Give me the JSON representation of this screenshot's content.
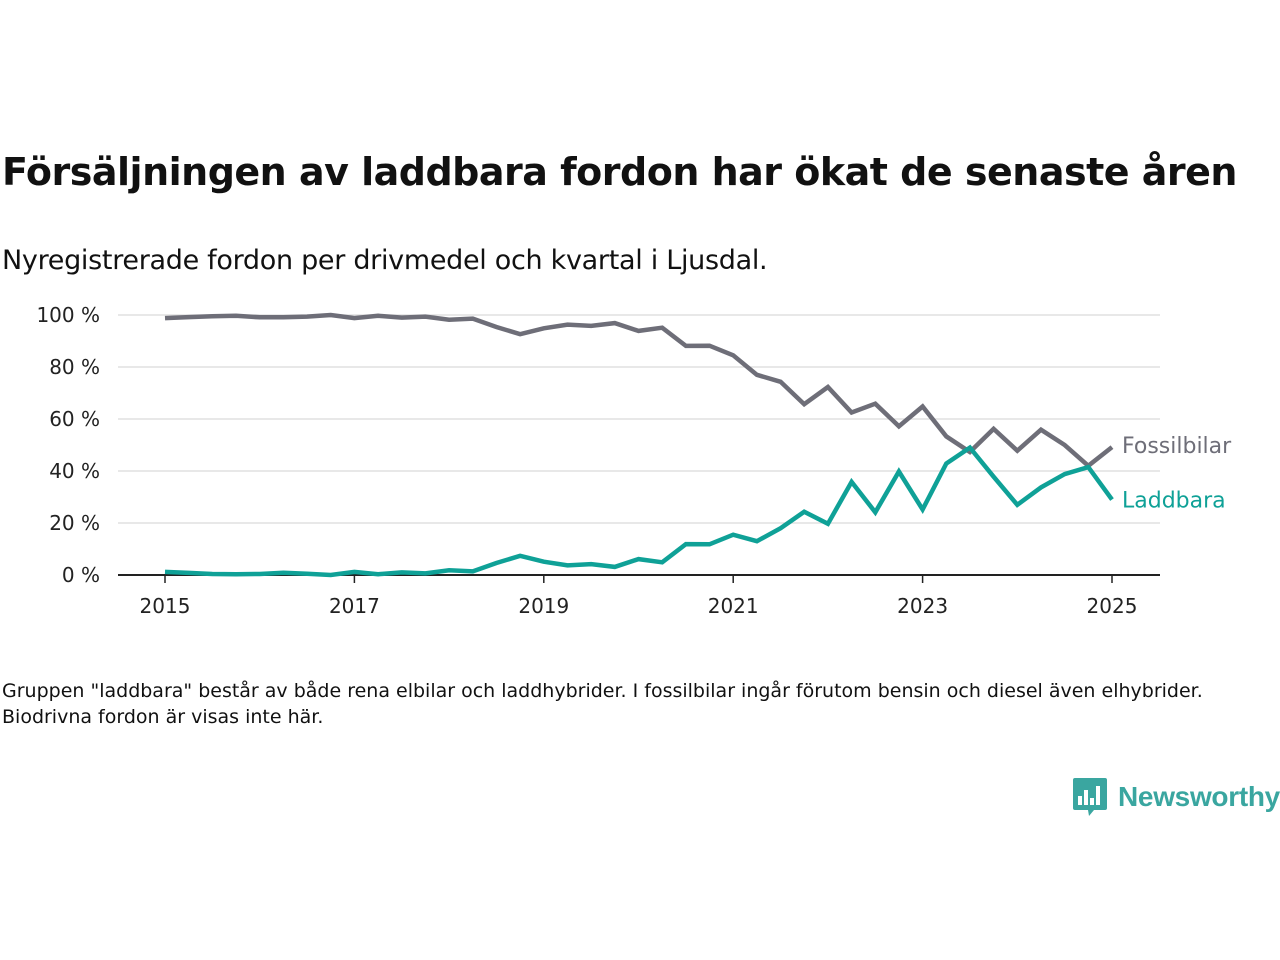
{
  "title": "Försäljningen av laddbara fordon har ökat de senaste åren",
  "subtitle": "Nyregistrerade fordon per drivmedel och kvartal i Ljusdal.",
  "note": "Gruppen \"laddbara\" består av både rena elbilar och laddhybrider. I fossilbilar ingår förutom bensin och diesel även elhybrider. Biodrivna fordon är visas inte här.",
  "brand": {
    "name": "Newsworthy",
    "icon": "newsworthy-logo-icon",
    "color": "#3aa6a0"
  },
  "chart_data": {
    "type": "line",
    "x_tick_labels": [
      "2015",
      "2017",
      "2019",
      "2021",
      "2023",
      "2025"
    ],
    "x_ticks": [
      2015,
      2017,
      2019,
      2021,
      2023,
      2025
    ],
    "y_tick_labels": [
      "0 %",
      "20 %",
      "40 %",
      "60 %",
      "80 %",
      "100 %"
    ],
    "y_ticks": [
      0,
      20,
      40,
      60,
      80,
      100
    ],
    "xlim": [
      2014.5,
      2025.5
    ],
    "ylim": [
      0,
      100
    ],
    "grid": "horizontal",
    "x": [
      2015.0,
      2015.25,
      2015.5,
      2015.75,
      2016.0,
      2016.25,
      2016.5,
      2016.75,
      2017.0,
      2017.25,
      2017.5,
      2017.75,
      2018.0,
      2018.25,
      2018.5,
      2018.75,
      2019.0,
      2019.25,
      2019.5,
      2019.75,
      2020.0,
      2020.25,
      2020.5,
      2020.75,
      2021.0,
      2021.25,
      2021.5,
      2021.75,
      2022.0,
      2022.25,
      2022.5,
      2022.75,
      2023.0,
      2023.25,
      2023.5,
      2023.75,
      2024.0,
      2024.25,
      2024.5,
      2024.75,
      2025.0
    ],
    "series": [
      {
        "name": "Fossilbilar",
        "color": "#6e6e78",
        "values": [
          98.8,
          99.2,
          99.5,
          99.7,
          99.1,
          99.1,
          99.4,
          100.0,
          98.8,
          99.7,
          99.0,
          99.4,
          98.2,
          98.6,
          95.4,
          92.6,
          94.9,
          96.3,
          95.8,
          96.9,
          93.9,
          95.1,
          88.1,
          88.2,
          84.5,
          77.0,
          74.3,
          65.7,
          72.3,
          62.5,
          65.9,
          57.2,
          64.8,
          53.3,
          47.3,
          56.2,
          47.8,
          55.9,
          50.0,
          42.0,
          49.2
        ]
      },
      {
        "name": "Laddbara",
        "color": "#0fa197",
        "values": [
          1.2,
          0.8,
          0.4,
          0.3,
          0.4,
          0.9,
          0.5,
          0.0,
          1.2,
          0.3,
          1.0,
          0.6,
          1.8,
          1.4,
          4.6,
          7.4,
          5.1,
          3.7,
          4.2,
          3.1,
          6.1,
          4.9,
          11.9,
          11.8,
          15.5,
          13.0,
          18.0,
          24.3,
          19.7,
          35.8,
          24.1,
          39.8,
          25.2,
          42.9,
          49.0,
          37.8,
          27.0,
          33.7,
          38.8,
          41.5,
          29.0
        ]
      }
    ]
  }
}
